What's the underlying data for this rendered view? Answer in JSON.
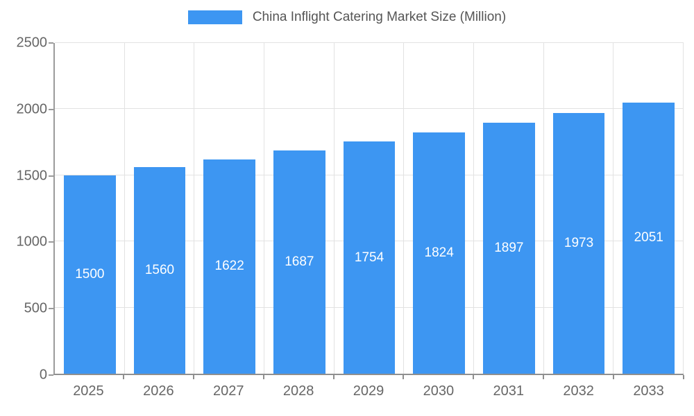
{
  "legend": {
    "label": "China Inflight Catering Market Size (Million)",
    "swatch_color": "#3d96f2"
  },
  "chart_data": {
    "type": "bar",
    "title": "China Inflight Catering Market Size (Million)",
    "categories": [
      "2025",
      "2026",
      "2027",
      "2028",
      "2029",
      "2030",
      "2031",
      "2032",
      "2033"
    ],
    "values": [
      1500,
      1560,
      1622,
      1687,
      1754,
      1824,
      1897,
      1973,
      2051
    ],
    "xlabel": "",
    "ylabel": "",
    "ylim": [
      0,
      2500
    ],
    "yticks": [
      0,
      500,
      1000,
      1500,
      2000,
      2500
    ],
    "grid": true,
    "legend_position": "top",
    "bar_color": "#3d96f2",
    "value_label_color": "#ffffff"
  }
}
